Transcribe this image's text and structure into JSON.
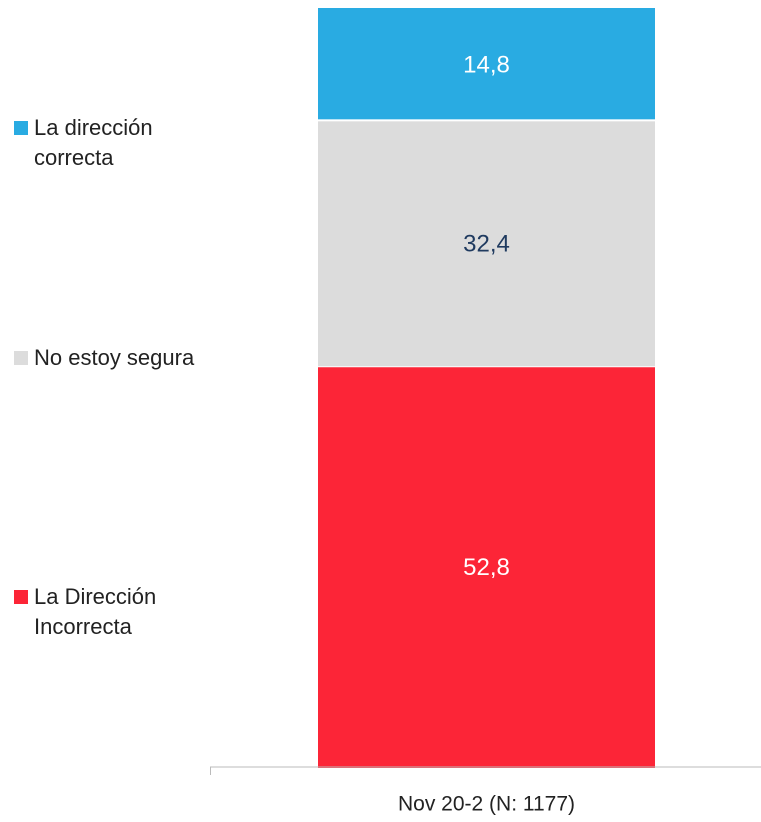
{
  "chart_data": {
    "type": "stacked_bar",
    "categories": [
      "Nov 20-2 (N: 1177)"
    ],
    "series": [
      {
        "name": "La Dirección Incorrecta",
        "color": "#fc2537",
        "label_color": "#ffffff",
        "values": [
          52.8
        ],
        "value_labels": [
          "52,8"
        ]
      },
      {
        "name": "No estoy segura",
        "color": "#dcdcdc",
        "label_color": "#1f3a5f",
        "values": [
          32.4
        ],
        "value_labels": [
          "32,4"
        ]
      },
      {
        "name": "La dirección correcta",
        "color": "#29abe2",
        "label_color": "#ffffff",
        "values": [
          14.8
        ],
        "value_labels": [
          "14,8"
        ]
      }
    ],
    "ylim": [
      0,
      100
    ],
    "legend": "left"
  }
}
